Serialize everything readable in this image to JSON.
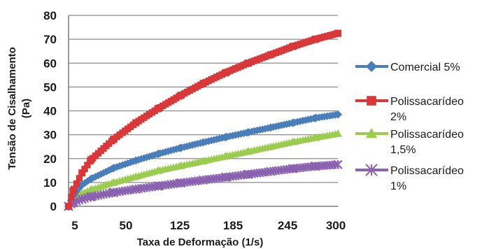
{
  "chart_data": {
    "type": "line",
    "xlabel": "Taxa de Deformação (1/s)",
    "ylabel": [
      "Tensão de Cisalhamento",
      "(Pa)"
    ],
    "ylim": [
      0,
      80
    ],
    "yticks": [
      0,
      10,
      20,
      30,
      40,
      50,
      60,
      70,
      80
    ],
    "xtick_labels": [
      "5",
      "50",
      "125",
      "185",
      "245",
      "300"
    ],
    "xlim": [
      0,
      300
    ],
    "grid": "horizontal",
    "legend_position": "right",
    "series": [
      {
        "name": "Comercial 5%",
        "legend_lines": [
          "Comercial 5%"
        ],
        "color": "#4a7ebb",
        "marker": "diamond",
        "x": [
          0,
          5,
          15,
          25,
          50,
          75,
          100,
          125,
          150,
          175,
          200,
          225,
          250,
          275,
          300
        ],
        "values": [
          0,
          4.5,
          9,
          11.5,
          16,
          19.2,
          22,
          24.5,
          26.8,
          29,
          31,
          33,
          35,
          37,
          38.5
        ]
      },
      {
        "name": "Polissacarídeo 2%",
        "legend_lines": [
          "Polissacarídeo",
          "2%"
        ],
        "color": "#d9383a",
        "marker": "square",
        "x": [
          0,
          5,
          15,
          25,
          50,
          75,
          100,
          125,
          150,
          175,
          200,
          225,
          250,
          275,
          300
        ],
        "values": [
          0,
          6.5,
          14,
          19.5,
          28,
          35,
          41,
          46.5,
          51.5,
          56,
          60,
          63.5,
          67,
          70,
          72.5
        ]
      },
      {
        "name": "Polissacarídeo 1,5%",
        "legend_lines": [
          "Polissacarídeo",
          "1,5%"
        ],
        "color": "#9bcc4f",
        "marker": "triangle",
        "x": [
          0,
          5,
          15,
          25,
          50,
          75,
          100,
          125,
          150,
          175,
          200,
          225,
          250,
          275,
          300
        ],
        "values": [
          0,
          3.5,
          5.5,
          7,
          10,
          12.5,
          15,
          17,
          19,
          21,
          23,
          25,
          27,
          28.8,
          30.5
        ]
      },
      {
        "name": "Polissacarídeo 1%",
        "legend_lines": [
          "Polissacarídeo",
          "1%"
        ],
        "color": "#8a62b0",
        "marker": "x",
        "x": [
          0,
          5,
          15,
          25,
          50,
          75,
          100,
          125,
          150,
          175,
          200,
          225,
          250,
          275,
          300
        ],
        "values": [
          0,
          1.5,
          3,
          4,
          5.8,
          7.2,
          8.5,
          9.8,
          11,
          12.2,
          13.4,
          14.6,
          15.8,
          16.8,
          17.5
        ]
      }
    ]
  }
}
